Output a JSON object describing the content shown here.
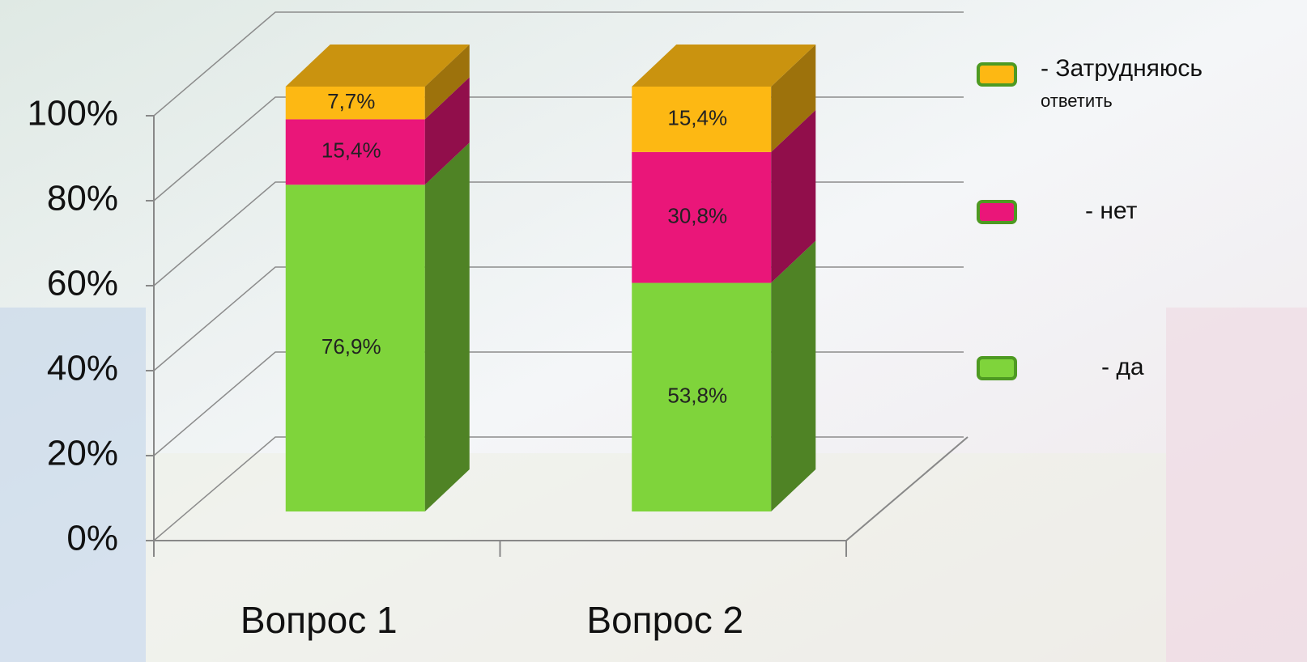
{
  "chart_data": {
    "type": "stacked-bar-3d",
    "categories": [
      "Вопрос 1",
      "Вопрос 2"
    ],
    "series": [
      {
        "name": "- да",
        "color": "#7fd43b",
        "values": [
          76.9,
          53.8
        ],
        "value_labels": [
          "76,9%",
          "53,8%"
        ]
      },
      {
        "name": "- нет",
        "color": "#ea1679",
        "values": [
          15.4,
          30.8
        ],
        "value_labels": [
          "15,4%",
          "30,8%"
        ]
      },
      {
        "name": "- Затрудняюсь ответить",
        "color": "#fdb813",
        "values": [
          7.7,
          15.4
        ],
        "value_labels": [
          "7,7%",
          "15,4%"
        ]
      }
    ],
    "ylim": [
      0,
      100
    ],
    "yticks": [
      {
        "value": 0,
        "label": "0%"
      },
      {
        "value": 20,
        "label": "20%"
      },
      {
        "value": 40,
        "label": "40%"
      },
      {
        "value": 60,
        "label": "60%"
      },
      {
        "value": 80,
        "label": "80%"
      },
      {
        "value": 100,
        "label": "100%"
      }
    ],
    "grid": true
  }
}
